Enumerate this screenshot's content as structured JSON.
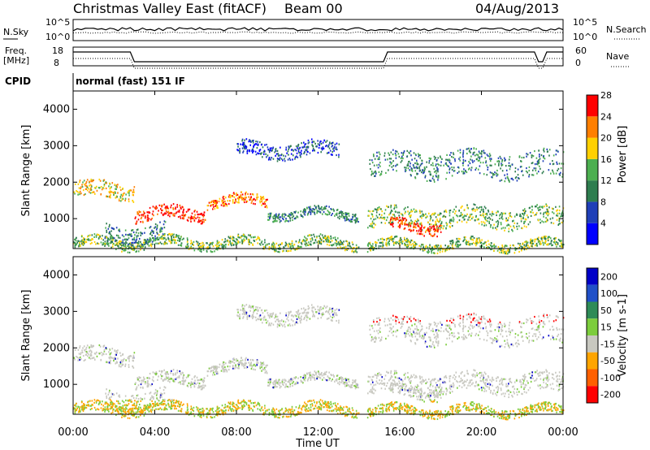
{
  "header": {
    "station": "Christmas Valley East (fitACF)",
    "beam": "Beam 00",
    "date": "04/Aug/2013"
  },
  "noise_panel": {
    "left_label": "N.Sky",
    "right_label": "N.Search",
    "top_tick": "10^5",
    "bottom_tick": "10^0"
  },
  "freq_panel": {
    "left_label_line1": "Freq.",
    "left_label_line2": "[MHz]",
    "right_label": "Nave",
    "left_ticks": [
      "18",
      "8"
    ],
    "right_ticks": [
      "60",
      "0"
    ]
  },
  "cpid_panel": {
    "label": "CPID",
    "value": "normal (fast) 151 IF"
  },
  "chart_data": [
    {
      "type": "heatmap",
      "title": "",
      "ylabel": "Slant Range [km]",
      "xlabel": "",
      "ylim": [
        180,
        4500
      ],
      "yticks": [
        1000,
        2000,
        3000,
        4000
      ],
      "colorbar": {
        "label": "Power [dB]",
        "ticks": [
          "4",
          "8",
          "12",
          "16",
          "20",
          "24",
          "28"
        ],
        "colors": [
          "#0000ff",
          "#1f3fb8",
          "#2e7d4f",
          "#4caf50",
          "#ffd000",
          "#ff7f00",
          "#ff0000"
        ]
      }
    },
    {
      "type": "heatmap",
      "title": "",
      "ylabel": "Slant Range [km]",
      "xlabel": "Time UT",
      "ylim": [
        180,
        4500
      ],
      "yticks": [
        1000,
        2000,
        3000,
        4000
      ],
      "colorbar": {
        "label": "Velocity [m s-1]",
        "ticks": [
          "200",
          "100",
          "50",
          "15",
          "-15",
          "-50",
          "-100",
          "-200"
        ],
        "colors": [
          "#0000c8",
          "#2050c8",
          "#2e8b57",
          "#7ccd3c",
          "#c8c8c0",
          "#ffa500",
          "#ff6000",
          "#ff0000"
        ]
      }
    }
  ],
  "time_axis": {
    "label": "Time UT",
    "ticks": [
      "00:00",
      "04:00",
      "08:00",
      "12:00",
      "16:00",
      "20:00",
      "00:00"
    ]
  }
}
